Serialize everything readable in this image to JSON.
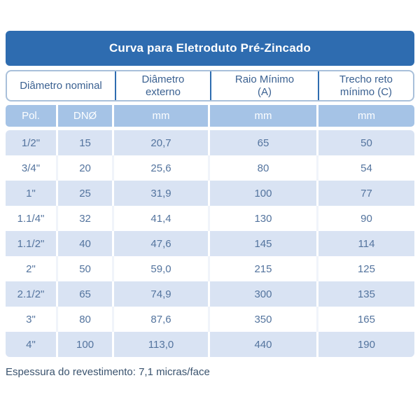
{
  "title": "Curva para Eletroduto Pré-Zincado",
  "footer": "Espessura do revestimento: 7,1 micras/face",
  "colors": {
    "title_bg": "#2e6cb0",
    "header_text": "#3b6191",
    "header_divider": "#2e6cb0",
    "header_border": "#a9c0da",
    "subheader_bg": "#a5c3e6",
    "subheader_text": "#ffffff",
    "row_alt_bg": "#d9e3f3",
    "row_plain_bg": "#ffffff",
    "data_text": "#54749e",
    "footer_text": "#3a536e"
  },
  "table": {
    "headers": [
      {
        "line1": "Diâmetro nominal",
        "line2": ""
      },
      {
        "line1": "Diâmetro",
        "line2": "externo"
      },
      {
        "line1": "Raio Mínimo",
        "line2": "(A)"
      },
      {
        "line1": "Trecho reto",
        "line2": "mínimo (C)"
      }
    ],
    "subheaders": [
      "Pol.",
      "DNØ",
      "mm",
      "mm",
      "mm"
    ],
    "rows": [
      [
        "1/2\"",
        "15",
        "20,7",
        "65",
        "50"
      ],
      [
        "3/4\"",
        "20",
        "25,6",
        "80",
        "54"
      ],
      [
        "1\"",
        "25",
        "31,9",
        "100",
        "77"
      ],
      [
        "1.1/4\"",
        "32",
        "41,4",
        "130",
        "90"
      ],
      [
        "1.1/2\"",
        "40",
        "47,6",
        "145",
        "114"
      ],
      [
        "2\"",
        "50",
        "59,0",
        "215",
        "125"
      ],
      [
        "2.1/2\"",
        "65",
        "74,9",
        "300",
        "135"
      ],
      [
        "3\"",
        "80",
        "87,6",
        "350",
        "165"
      ],
      [
        "4\"",
        "100",
        "113,0",
        "440",
        "190"
      ]
    ]
  }
}
